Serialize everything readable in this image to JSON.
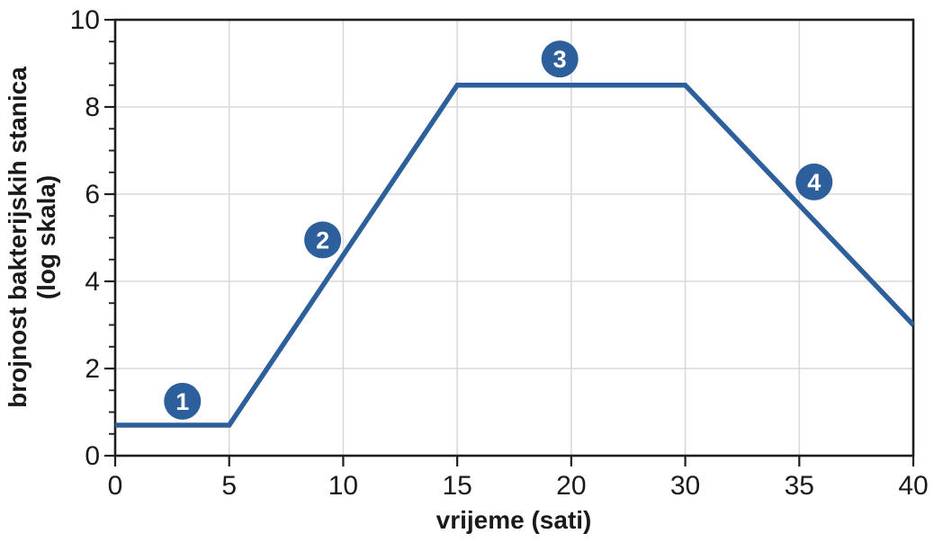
{
  "chart_data": {
    "type": "line",
    "title": "",
    "xlabel": "vrijeme (sati)",
    "ylabel_lines": [
      "brojnost bakterijskih stanica",
      "(log skala)"
    ],
    "categories": [
      "0",
      "5",
      "10",
      "15",
      "20",
      "30",
      "35",
      "40"
    ],
    "values": [
      0.7,
      0.7,
      4.6,
      8.5,
      8.5,
      8.5,
      5.75,
      3
    ],
    "y_ticks": [
      0,
      2,
      4,
      6,
      8,
      10
    ],
    "ylim": [
      0,
      10
    ],
    "y_minor_step": 0.5,
    "grid": "major gridlines on both axes",
    "legend": "none",
    "annotations": [
      {
        "label": "1",
        "x_index": 0.59,
        "y_value": 1.25
      },
      {
        "label": "2",
        "x_index": 1.82,
        "y_value": 4.95
      },
      {
        "label": "3",
        "x_index": 3.9,
        "y_value": 9.1
      },
      {
        "label": "4",
        "x_index": 6.13,
        "y_value": 6.28
      }
    ]
  },
  "colors": {
    "line": "#2d5f9c",
    "marker_fill": "#2d5f9c",
    "marker_text": "#ffffff",
    "grid": "#d9d9d9",
    "axis": "#1f1f1f",
    "text": "#1a1a1a",
    "background": "#ffffff"
  }
}
